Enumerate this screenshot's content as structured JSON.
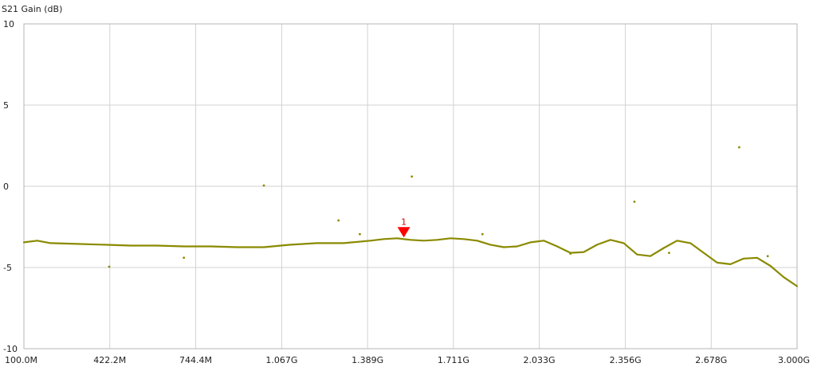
{
  "chart_data": {
    "type": "line",
    "ylabel": "S21 Gain (dB)",
    "ylim": [
      -10,
      10
    ],
    "xlim": [
      100000000,
      3000000000
    ],
    "y_ticks": [
      {
        "value": 10,
        "label": "10"
      },
      {
        "value": 5,
        "label": "5"
      },
      {
        "value": 0,
        "label": "0"
      },
      {
        "value": -5,
        "label": "-5"
      },
      {
        "value": -10,
        "label": "-10"
      }
    ],
    "x_ticks": [
      {
        "value": 100000000,
        "label": "100.0M"
      },
      {
        "value": 422200000,
        "label": "422.2M"
      },
      {
        "value": 744400000,
        "label": "744.4M"
      },
      {
        "value": 1067000000,
        "label": "1.067G"
      },
      {
        "value": 1389000000,
        "label": "1.389G"
      },
      {
        "value": 1711000000,
        "label": "1.711G"
      },
      {
        "value": 2033000000,
        "label": "2.033G"
      },
      {
        "value": 2356000000,
        "label": "2.356G"
      },
      {
        "value": 2678000000,
        "label": "2.678G"
      },
      {
        "value": 3000000000,
        "label": "3.000G"
      }
    ],
    "grid": true,
    "series": [
      {
        "color": "#8a8a00",
        "x": [
          100000000,
          150000000,
          200000000,
          300000000,
          400000000,
          500000000,
          600000000,
          700000000,
          800000000,
          900000000,
          1000000000,
          1100000000,
          1200000000,
          1300000000,
          1400000000,
          1450000000,
          1500000000,
          1550000000,
          1600000000,
          1650000000,
          1700000000,
          1750000000,
          1800000000,
          1850000000,
          1900000000,
          1950000000,
          2000000000,
          2050000000,
          2100000000,
          2150000000,
          2200000000,
          2250000000,
          2300000000,
          2350000000,
          2400000000,
          2450000000,
          2500000000,
          2550000000,
          2600000000,
          2650000000,
          2700000000,
          2750000000,
          2800000000,
          2850000000,
          2900000000,
          2950000000,
          3000000000
        ],
        "y": [
          -3.45,
          -3.35,
          -3.5,
          -3.55,
          -3.6,
          -3.65,
          -3.65,
          -3.7,
          -3.7,
          -3.75,
          -3.75,
          -3.6,
          -3.5,
          -3.5,
          -3.35,
          -3.25,
          -3.2,
          -3.3,
          -3.35,
          -3.3,
          -3.2,
          -3.25,
          -3.35,
          -3.6,
          -3.75,
          -3.7,
          -3.45,
          -3.35,
          -3.7,
          -4.1,
          -4.05,
          -3.6,
          -3.3,
          -3.5,
          -4.2,
          -4.3,
          -3.8,
          -3.35,
          -3.5,
          -4.1,
          -4.7,
          -4.8,
          -4.45,
          -4.4,
          -4.9,
          -5.6,
          -6.15
        ]
      }
    ],
    "outliers": [
      {
        "x": 420000000,
        "y": -4.95
      },
      {
        "x": 700000000,
        "y": -4.4
      },
      {
        "x": 1000000000,
        "y": 0.05
      },
      {
        "x": 1280000000,
        "y": -2.1
      },
      {
        "x": 1360000000,
        "y": -2.95
      },
      {
        "x": 1555000000,
        "y": 0.6
      },
      {
        "x": 1820000000,
        "y": -2.95
      },
      {
        "x": 2150000000,
        "y": -4.15
      },
      {
        "x": 2390000000,
        "y": -0.95
      },
      {
        "x": 2520000000,
        "y": -4.1
      },
      {
        "x": 2783000000,
        "y": 2.4
      },
      {
        "x": 2890000000,
        "y": -4.3
      }
    ],
    "marker": {
      "label": "1",
      "x": 1525000000,
      "y": -3.2
    }
  }
}
